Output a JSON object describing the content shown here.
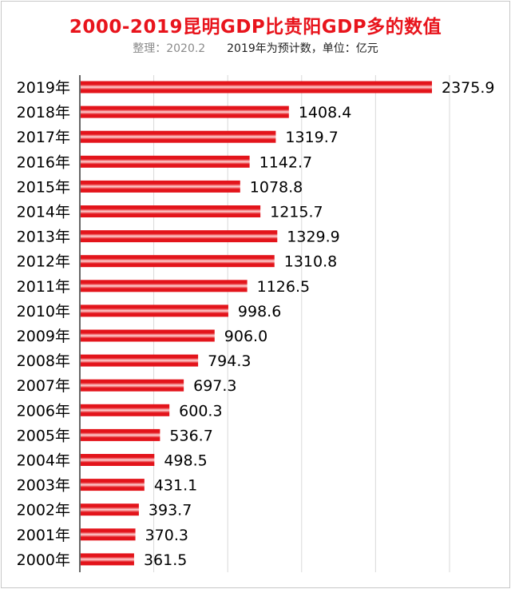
{
  "title": "2000-2019昆明GDP比贵阳GDP多的数值",
  "subtitle": {
    "compiled": "整理：2020.2",
    "note": "2019年为预计数，单位：亿元"
  },
  "colors": {
    "title": "#e8141c",
    "bar_dark": "#e3141b",
    "bar_light": "#ffd3d3",
    "grid": "#d9d9d9",
    "axis": "#000000"
  },
  "chart_data": {
    "type": "bar",
    "orientation": "horizontal",
    "title": "2000-2019昆明GDP比贵阳GDP多的数值",
    "unit": "亿元",
    "categories": [
      "2019年",
      "2018年",
      "2017年",
      "2016年",
      "2015年",
      "2014年",
      "2013年",
      "2012年",
      "2011年",
      "2010年",
      "2009年",
      "2008年",
      "2007年",
      "2006年",
      "2005年",
      "2004年",
      "2003年",
      "2002年",
      "2001年",
      "2000年"
    ],
    "values": [
      2375.9,
      1408.4,
      1319.7,
      1142.7,
      1078.8,
      1215.7,
      1329.9,
      1310.8,
      1126.5,
      998.6,
      906.0,
      794.3,
      697.3,
      600.3,
      536.7,
      498.5,
      431.1,
      393.7,
      370.3,
      361.5
    ],
    "value_labels": [
      "2375.9",
      "1408.4",
      "1319.7",
      "1142.7",
      "1078.8",
      "1215.7",
      "1329.9",
      "1310.8",
      "1126.5",
      "998.6",
      "906.0",
      "794.3",
      "697.3",
      "600.3",
      "536.7",
      "498.5",
      "431.1",
      "393.7",
      "370.3",
      "361.5"
    ],
    "xlim": [
      0,
      2500
    ],
    "grid": true,
    "legend": "none"
  }
}
